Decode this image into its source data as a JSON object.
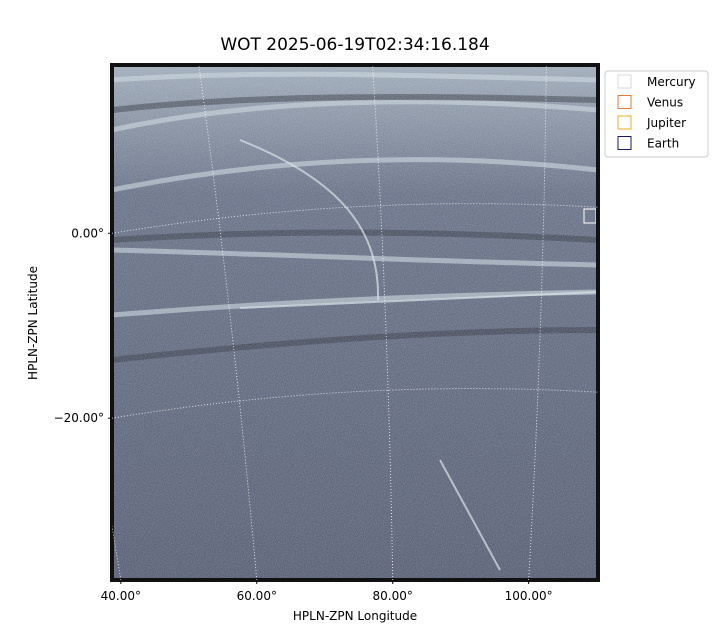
{
  "chart_data": {
    "type": "image",
    "title": "WOT 2025-06-19T02:34:16.184",
    "x_label": "HPLN-ZPN Longitude",
    "y_label": "HPLN-ZPN Latitude",
    "xlim": [
      38.7,
      110.2
    ],
    "ylim": [
      -37.5,
      18.2
    ],
    "xticks": [
      {
        "value": 40,
        "label": "40.00°"
      },
      {
        "value": 60,
        "label": "60.00°"
      },
      {
        "value": 80,
        "label": "80.00°"
      },
      {
        "value": 100,
        "label": "100.00°"
      }
    ],
    "yticks": [
      {
        "value": 0,
        "label": "0.00°"
      },
      {
        "value": -20,
        "label": "−20.00°"
      }
    ],
    "grid": true,
    "legend": "upper right",
    "series": [
      {
        "name": "Mercury",
        "color": "#d9d9d9"
      },
      {
        "name": "Venus",
        "color": "#e07b39"
      },
      {
        "name": "Jupiter",
        "color": "#e8b020"
      },
      {
        "name": "Earth",
        "color": "#1a1a6e"
      }
    ]
  }
}
